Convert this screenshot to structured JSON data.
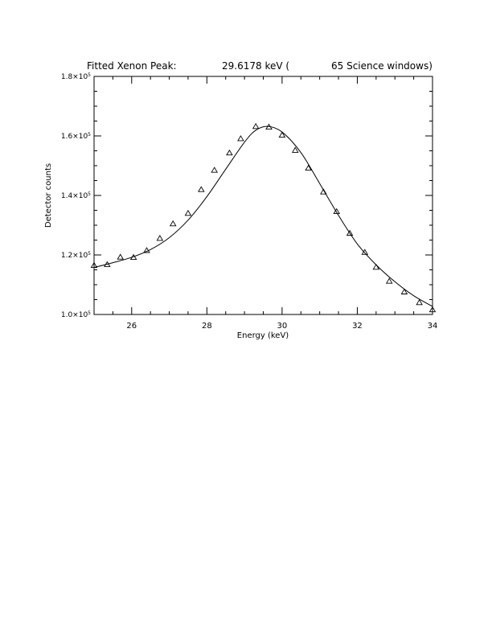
{
  "page": {
    "background": "#ffffff"
  },
  "chart_data": {
    "type": "scatter",
    "title_left": "Fitted Xenon Peak:",
    "title_value": "29.6178 keV (",
    "title_right": "65 Science windows)",
    "xlabel": "Energy (keV)",
    "ylabel": "Detector counts",
    "xlim": [
      25,
      34
    ],
    "ylim": [
      100000,
      180000
    ],
    "x_ticks": [
      26,
      28,
      30,
      32,
      34
    ],
    "x_tick_labels": [
      "26",
      "28",
      "30",
      "32",
      "34"
    ],
    "y_ticks": [
      100000,
      120000,
      140000,
      160000,
      180000
    ],
    "y_tick_labels": [
      {
        "mantissa": "1.0×10",
        "exp": "5"
      },
      {
        "mantissa": "1.2×10",
        "exp": "5"
      },
      {
        "mantissa": "1.4×10",
        "exp": "5"
      },
      {
        "mantissa": "1.6×10",
        "exp": "5"
      },
      {
        "mantissa": "1.8×10",
        "exp": "5"
      }
    ],
    "grid": false,
    "colors": {
      "axes": "#000000",
      "series": "#000000"
    },
    "series": [
      {
        "kind": "points",
        "marker": "triangle-open",
        "x": [
          25.0,
          25.35,
          25.7,
          26.05,
          26.4,
          26.75,
          27.1,
          27.5,
          27.85,
          28.2,
          28.6,
          28.9,
          29.3,
          29.65,
          30.0,
          30.35,
          30.7,
          31.1,
          31.45,
          31.8,
          32.2,
          32.5,
          32.85,
          33.25,
          33.65,
          34.0
        ],
        "y": [
          116600,
          116900,
          119400,
          119300,
          121600,
          125700,
          130600,
          134100,
          142100,
          148600,
          154400,
          159200,
          163300,
          163100,
          160400,
          155300,
          149300,
          141300,
          134700,
          127400,
          121000,
          116000,
          111300,
          107700,
          104100,
          101700
        ]
      },
      {
        "kind": "fit",
        "x": [
          25.0,
          25.5,
          26.0,
          26.5,
          27.0,
          27.5,
          28.0,
          28.5,
          29.0,
          29.3,
          29.6178,
          30.0,
          30.5,
          31.0,
          31.5,
          32.0,
          32.5,
          33.0,
          33.5,
          34.0
        ],
        "y": [
          115800,
          117400,
          119200,
          121800,
          125800,
          131700,
          139600,
          148800,
          157900,
          161900,
          163200,
          161300,
          154400,
          144000,
          133300,
          123700,
          116700,
          111000,
          106300,
          102700
        ]
      }
    ]
  }
}
